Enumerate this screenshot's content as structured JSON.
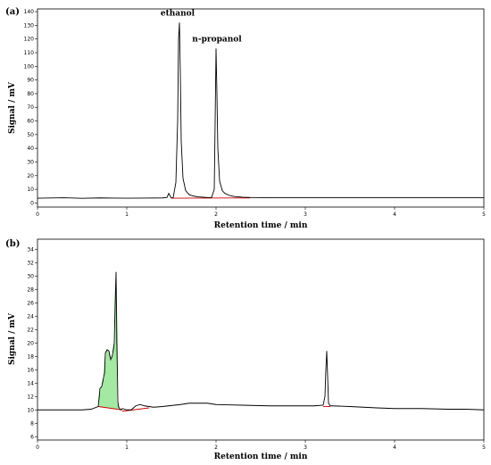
{
  "chart_data": [
    {
      "type": "line",
      "panel_label": "(a)",
      "xlabel": "Retention time / min",
      "ylabel": "Signal / mV",
      "xlim": [
        0,
        5
      ],
      "ylim": [
        -3,
        142
      ],
      "x_ticks": [
        0,
        1,
        2,
        3,
        4,
        5
      ],
      "y_ticks": [
        0,
        10,
        20,
        30,
        40,
        50,
        60,
        70,
        80,
        90,
        100,
        110,
        120,
        130,
        140
      ],
      "grid": false,
      "line_color": "#000000",
      "baseline_color": "#cc0000",
      "series": [
        {
          "x": [
            0,
            0.3,
            0.5,
            0.7,
            1.0,
            1.2,
            1.4,
            1.45,
            1.47,
            1.49,
            1.5,
            1.52,
            1.55,
            1.57,
            1.58,
            1.59,
            1.6,
            1.61,
            1.63,
            1.66,
            1.7,
            1.75,
            1.8,
            1.9,
            1.95,
            1.98,
            1.99,
            2.0,
            2.01,
            2.02,
            2.04,
            2.07,
            2.1,
            2.15,
            2.2,
            2.3,
            2.4,
            2.6,
            3.0,
            3.5,
            4.0,
            4.5,
            5.0
          ],
          "y": [
            3.5,
            3.8,
            3.4,
            3.7,
            3.5,
            3.6,
            3.7,
            4.0,
            7.0,
            4.5,
            3.6,
            4.0,
            15,
            60,
            120,
            132,
            95,
            45,
            18,
            9,
            6,
            5,
            4.5,
            4.0,
            4.0,
            10,
            60,
            113,
            80,
            40,
            16,
            9,
            7,
            5.5,
            4.8,
            4.2,
            4.0,
            3.8,
            3.8,
            3.8,
            3.8,
            3.8,
            3.8
          ]
        }
      ],
      "baseline_segments": [
        {
          "x": [
            1.5,
            2.38
          ],
          "y": [
            3.5,
            3.7
          ]
        }
      ],
      "annotations": [
        {
          "text": "ethanol",
          "x": 1.57,
          "y": 137
        },
        {
          "text": "n-propanol",
          "x": 2.01,
          "y": 118
        }
      ]
    },
    {
      "type": "line",
      "panel_label": "(b)",
      "xlabel": "Retention time / min",
      "ylabel": "Signal / mV",
      "xlim": [
        0,
        5
      ],
      "ylim": [
        5.5,
        35.5
      ],
      "x_ticks": [
        0,
        1,
        2,
        3,
        4,
        5
      ],
      "y_ticks": [
        6,
        8,
        10,
        12,
        14,
        16,
        18,
        20,
        22,
        24,
        26,
        28,
        30,
        32,
        34
      ],
      "grid": false,
      "line_color": "#000000",
      "baseline_color": "#cc0000",
      "fill_color": "#33cc33",
      "series": [
        {
          "x": [
            0,
            0.3,
            0.5,
            0.6,
            0.68,
            0.7,
            0.72,
            0.75,
            0.76,
            0.78,
            0.8,
            0.82,
            0.84,
            0.86,
            0.87,
            0.88,
            0.89,
            0.9,
            0.91,
            0.93,
            0.95,
            1.0,
            1.05,
            1.1,
            1.15,
            1.2,
            1.25,
            1.3,
            1.4,
            1.6,
            1.7,
            1.9,
            2.0,
            2.3,
            2.6,
            2.8,
            3.0,
            3.1,
            3.2,
            3.22,
            3.23,
            3.24,
            3.25,
            3.26,
            3.28,
            3.3,
            3.5,
            3.8,
            4.0,
            4.3,
            4.6,
            4.8,
            5.0
          ],
          "y": [
            10.0,
            10.0,
            10.0,
            10.1,
            10.5,
            13.2,
            13.5,
            15.5,
            18.5,
            19.0,
            18.8,
            17.5,
            18.2,
            20.0,
            26.0,
            30.6,
            20.0,
            11.2,
            10.4,
            10.0,
            10.2,
            10.0,
            10.0,
            10.6,
            10.8,
            10.6,
            10.5,
            10.4,
            10.5,
            10.8,
            11.0,
            11.0,
            10.8,
            10.7,
            10.6,
            10.6,
            10.6,
            10.6,
            10.7,
            12.0,
            16.0,
            18.8,
            15.0,
            11.0,
            10.6,
            10.6,
            10.5,
            10.3,
            10.2,
            10.2,
            10.1,
            10.1,
            10.0
          ]
        }
      ],
      "baseline_segments": [
        {
          "x": [
            0.68,
            0.95
          ],
          "y": [
            10.5,
            10.0
          ]
        },
        {
          "x": [
            0.95,
            1.25
          ],
          "y": [
            9.8,
            10.3
          ]
        },
        {
          "x": [
            3.2,
            3.28
          ],
          "y": [
            10.5,
            10.5
          ]
        },
        {
          "x": [
            4.7,
            4.75
          ],
          "y": [
            10.1,
            10.1
          ]
        }
      ],
      "filled_region": {
        "x_start": 0.7,
        "x_end": 0.9
      }
    }
  ]
}
